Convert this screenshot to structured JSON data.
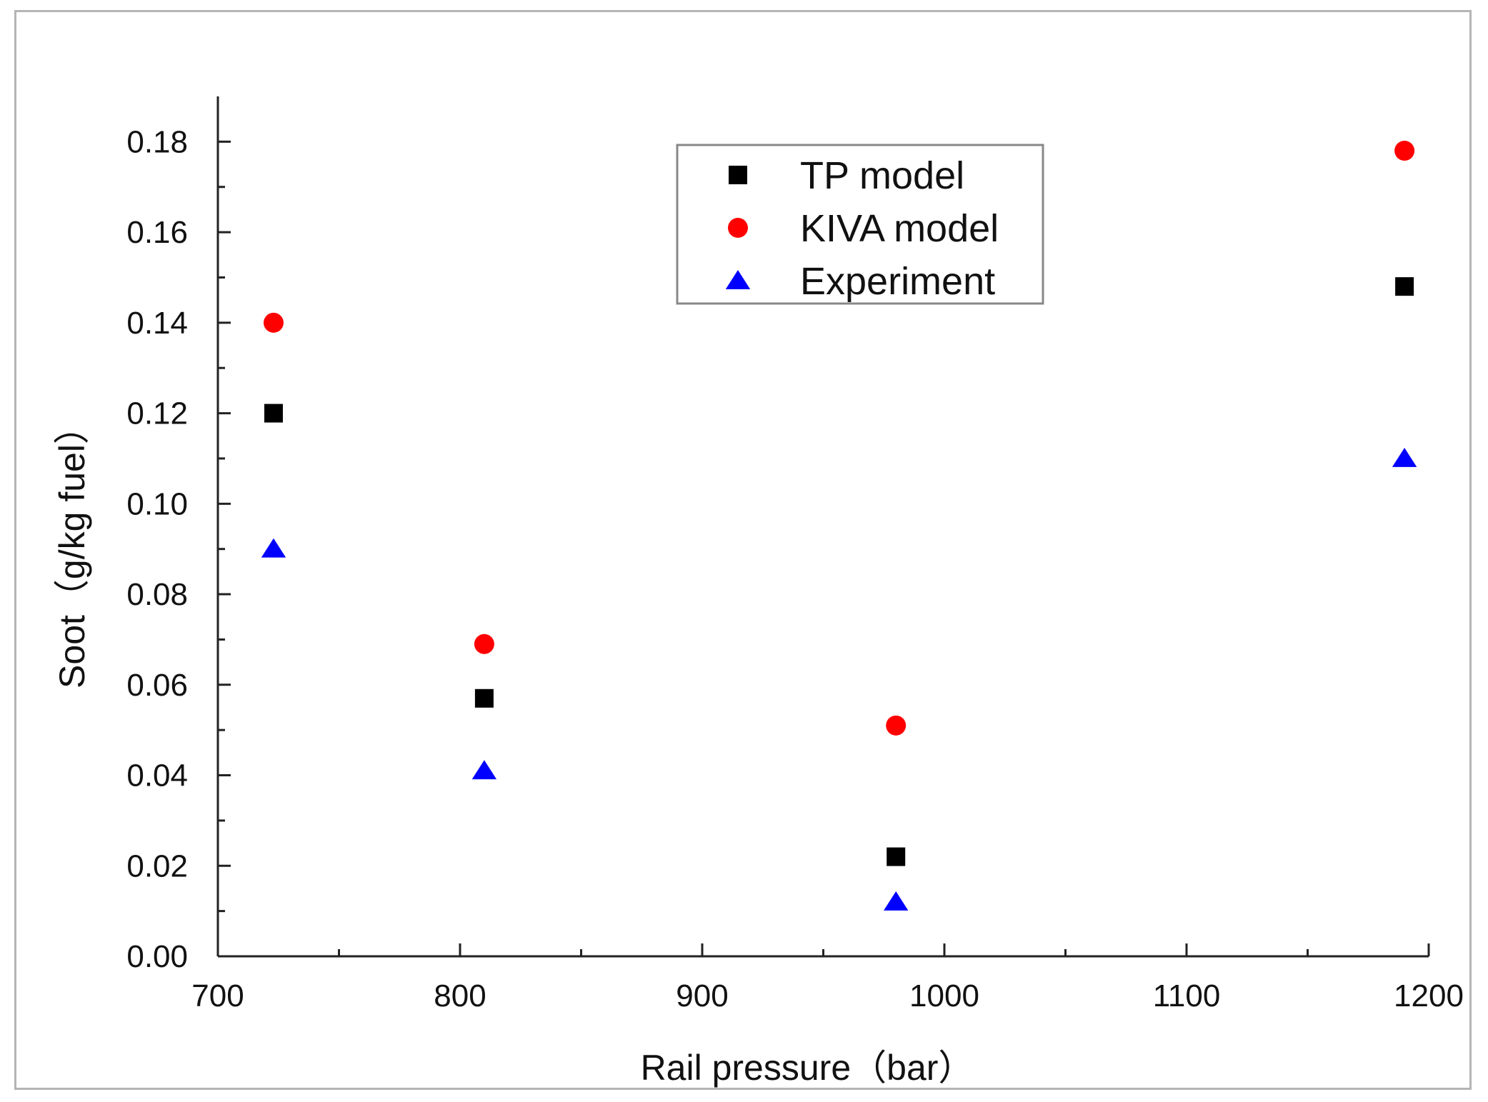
{
  "chart_data": {
    "type": "scatter",
    "title": "",
    "xlabel": "Rail pressure（bar）",
    "ylabel": "Soot（g/kg fuel）",
    "xlim": [
      700,
      1200
    ],
    "ylim": [
      0.0,
      0.19
    ],
    "x_ticks": [
      "700",
      "800",
      "900",
      "1000",
      "1100",
      "1200"
    ],
    "y_ticks": [
      "0.00",
      "0.02",
      "0.04",
      "0.06",
      "0.08",
      "0.10",
      "0.12",
      "0.14",
      "0.16",
      "0.18"
    ],
    "legend_position": "top-center",
    "grid": false,
    "series": [
      {
        "name": "TP model",
        "marker": "square",
        "color": "#000000",
        "x": [
          723,
          810,
          980,
          1190
        ],
        "y": [
          0.12,
          0.057,
          0.022,
          0.148
        ]
      },
      {
        "name": "KIVA model",
        "marker": "circle",
        "color": "#ff0000",
        "x": [
          723,
          810,
          980,
          1190
        ],
        "y": [
          0.14,
          0.069,
          0.051,
          0.178
        ]
      },
      {
        "name": "Experiment",
        "marker": "triangle",
        "color": "#0000ff",
        "x": [
          723,
          810,
          980,
          1190
        ],
        "y": [
          0.09,
          0.041,
          0.012,
          0.11
        ]
      }
    ]
  }
}
